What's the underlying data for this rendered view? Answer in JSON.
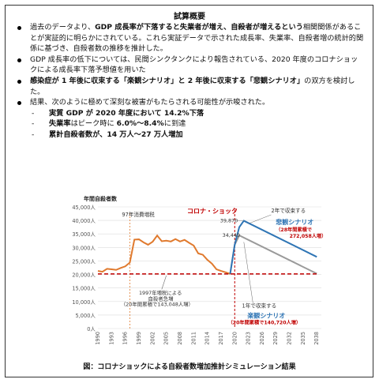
{
  "title": "試算概要",
  "bullets": [
    {
      "parts": [
        {
          "t": "過去のデータより、",
          "b": false
        },
        {
          "t": "GDP 成長率が下落すると失業者が増え、自殺者が増えるという",
          "b": true
        }
      ],
      "cont": "相関関係があることが実証的に明らかにされている。これら実証データで示された成長率、失業率、自殺者増の統計的関係に基づき、自殺者数の推移を推計した。"
    },
    {
      "parts": [
        {
          "t": "GDP 成長率の低下については、民間シンクタンクにより報告されている、2020 年度のコロナショックによる成長率下落予想値を用いた",
          "b": false
        }
      ],
      "cont": ""
    },
    {
      "parts": [
        {
          "t": "感染症が 1 年後に収束する「楽観シナリオ」と 2 年後に収束する「悲観シナリオ」",
          "b": true
        },
        {
          "t": "の双方を検討した。",
          "b": false
        }
      ],
      "cont": ""
    },
    {
      "parts": [
        {
          "t": "結果、次のように極めて深刻な被害がもたらされる可能性が示唆された。",
          "b": false
        }
      ],
      "cont": ""
    }
  ],
  "subitems": [
    {
      "dash": "-",
      "parts": [
        {
          "t": "実質 GDP が 2020 年度において 14.2%下落",
          "b": true
        }
      ]
    },
    {
      "dash": "-",
      "parts": [
        {
          "t": "失業率",
          "b": true
        },
        {
          "t": "はピーク時に ",
          "b": false
        },
        {
          "t": "6.0%～8.4%",
          "b": true
        },
        {
          "t": "に到達",
          "b": false
        }
      ]
    },
    {
      "dash": "-",
      "parts": [
        {
          "t": "累計自殺者数が、14 万人～27 万人増加",
          "b": true
        }
      ]
    }
  ],
  "chart_data": {
    "type": "line",
    "ylabel": "年間自殺者数",
    "ylim": [
      0,
      45000
    ],
    "yticks": [
      "0人",
      "5,000人",
      "10,000人",
      "15,000人",
      "20,000人",
      "25,000人",
      "30,000人",
      "35,000人",
      "40,000人",
      "45,000人"
    ],
    "xticks": [
      "1990",
      "1993",
      "1996",
      "1999",
      "2002",
      "2005",
      "2008",
      "2011",
      "2014",
      "2017",
      "2020",
      "2023",
      "2026",
      "2029",
      "2032",
      "2035",
      "2038"
    ],
    "series": [
      {
        "name": "historical",
        "color": "#E07A2E",
        "x": [
          1990,
          1991,
          1992,
          1993,
          1994,
          1995,
          1996,
          1997,
          1998,
          1999,
          2000,
          2001,
          2002,
          2003,
          2004,
          2005,
          2006,
          2007,
          2008,
          2009,
          2010,
          2011,
          2012,
          2013,
          2014,
          2015,
          2016,
          2017,
          2018,
          2019
        ],
        "y": [
          21300,
          21000,
          22100,
          21900,
          21700,
          22400,
          23000,
          24400,
          32900,
          33000,
          31900,
          31000,
          32100,
          34400,
          32300,
          32500,
          32200,
          33100,
          32200,
          32800,
          31700,
          30700,
          27800,
          27300,
          25400,
          24000,
          21900,
          21300,
          20800,
          20200
        ]
      },
      {
        "name": "楽観シナリオ",
        "color": "#9a9a9a",
        "x": [
          2019,
          2020,
          2021,
          2038
        ],
        "y": [
          20200,
          31000,
          34449,
          20300
        ]
      },
      {
        "name": "悲観シナリオ",
        "color": "#2F75B5",
        "x": [
          2019,
          2020,
          2021,
          2022,
          2038
        ],
        "y": [
          20200,
          31000,
          37500,
          39870,
          26500
        ]
      },
      {
        "name": "baseline",
        "color": "#C00000",
        "x": [
          1990,
          2038
        ],
        "y": [
          20200,
          20200
        ]
      }
    ],
    "annotations": {
      "shock_label": "コロナ・ショック",
      "tax1997": "97年消費増税",
      "tax1997_desc1": "1997年増税による",
      "tax1997_desc2": "自殺者急増",
      "tax1997_desc3": "（20年間累積で143,048人増）",
      "pess_top": "2年で収束する",
      "pess_name": "悲観シナリオ",
      "pess_sub": "（28年間累積で",
      "pess_sub2": "272,058人増）",
      "opt_top": "1年で収束する",
      "opt_name": "楽観シナリオ",
      "opt_sub": "（20年間累積で140,720人増）",
      "peak_pess": "39,870",
      "peak_opt": "34,449"
    }
  },
  "caption": "図：コロナショックによる自殺者数増加推計シミュレーション結果"
}
